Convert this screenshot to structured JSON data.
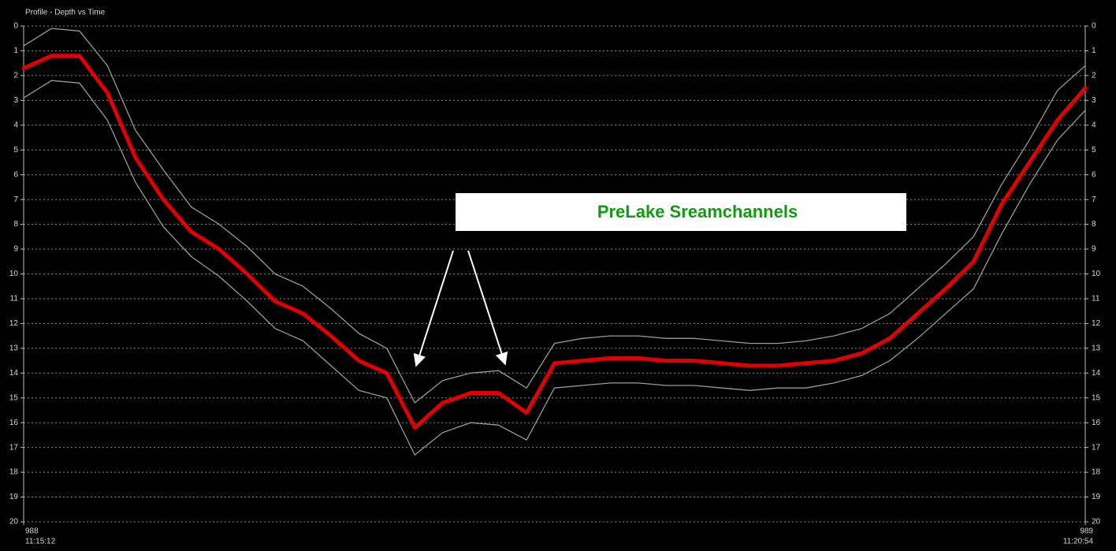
{
  "chart_data": {
    "type": "line",
    "title": "Profile - Depth vs Time",
    "annotation": "PreLake Sreamchannels",
    "x": [
      "11:15:12",
      "11:15:21",
      "11:15:30",
      "11:15:39",
      "11:15:48",
      "11:15:57",
      "11:16:06",
      "11:16:15",
      "11:16:24",
      "11:16:33",
      "11:16:42",
      "11:16:51",
      "11:17:00",
      "11:17:09",
      "11:17:18",
      "11:17:27",
      "11:17:36",
      "11:17:45",
      "11:17:54",
      "11:18:03",
      "11:18:12",
      "11:18:21",
      "11:18:30",
      "11:18:39",
      "11:18:48",
      "11:18:57",
      "11:19:06",
      "11:19:15",
      "11:19:24",
      "11:19:33",
      "11:19:42",
      "11:19:51",
      "11:20:00",
      "11:20:09",
      "11:20:18",
      "11:20:27",
      "11:20:36",
      "11:20:45",
      "11:20:54"
    ],
    "xlim": [
      "11:15:12",
      "11:20:54"
    ],
    "xticks": [
      {
        "value": "11:15:12",
        "label": "988"
      },
      {
        "value": "11:20:54",
        "label": "989"
      }
    ],
    "ylim": [
      0,
      20
    ],
    "yticks": [
      0,
      1,
      2,
      3,
      4,
      5,
      6,
      7,
      8,
      9,
      10,
      11,
      12,
      13,
      14,
      15,
      16,
      17,
      18,
      19,
      20
    ],
    "y_inverted": true,
    "grid": true,
    "series": [
      {
        "color": "#9a9a9a",
        "values": [
          0.8,
          0.1,
          0.2,
          1.6,
          4.2,
          5.8,
          7.3,
          8.0,
          8.9,
          10.0,
          10.5,
          11.4,
          12.4,
          13.0,
          15.2,
          14.3,
          14.0,
          13.9,
          14.6,
          12.8,
          12.6,
          12.5,
          12.5,
          12.6,
          12.6,
          12.7,
          12.8,
          12.8,
          12.7,
          12.5,
          12.2,
          11.6,
          10.6,
          9.6,
          8.5,
          6.4,
          4.6,
          2.6,
          1.6
        ]
      },
      {
        "color": "#9a9a9a",
        "values": [
          2.9,
          2.2,
          2.3,
          3.8,
          6.3,
          8.1,
          9.3,
          10.1,
          11.1,
          12.2,
          12.7,
          13.7,
          14.7,
          15.0,
          17.3,
          16.4,
          16.0,
          16.1,
          16.7,
          14.6,
          14.5,
          14.4,
          14.4,
          14.5,
          14.5,
          14.6,
          14.7,
          14.6,
          14.6,
          14.4,
          14.1,
          13.5,
          12.6,
          11.6,
          10.6,
          8.4,
          6.4,
          4.6,
          3.4
        ]
      },
      {
        "color": "#e00000",
        "values": [
          1.7,
          1.2,
          1.2,
          2.7,
          5.3,
          7.0,
          8.3,
          9.0,
          10.0,
          11.1,
          11.6,
          12.5,
          13.5,
          14.0,
          16.2,
          15.2,
          14.8,
          14.8,
          15.6,
          13.6,
          13.5,
          13.4,
          13.4,
          13.5,
          13.5,
          13.6,
          13.7,
          13.7,
          13.6,
          13.5,
          13.2,
          12.6,
          11.6,
          10.6,
          9.5,
          7.2,
          5.5,
          3.8,
          2.5
        ]
      }
    ]
  }
}
